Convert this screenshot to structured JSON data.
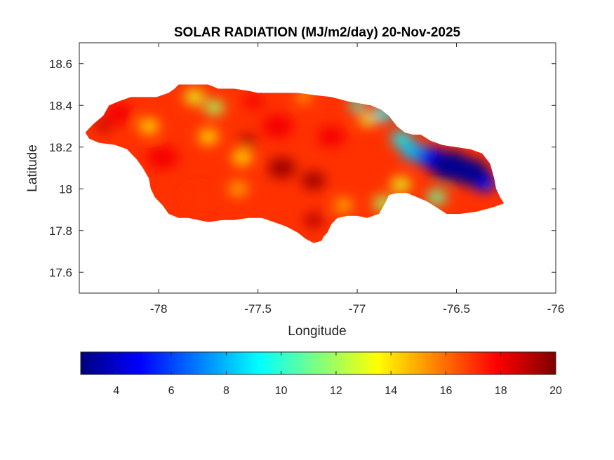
{
  "chart_data": {
    "type": "heatmap",
    "title": "SOLAR RADIATION (MJ/m2/day) 20-Nov-2025",
    "xlabel": "Longitude",
    "ylabel": "Latitude",
    "xlim": [
      -78.4,
      -76
    ],
    "ylim": [
      17.5,
      18.7
    ],
    "xticks": [
      -78,
      -77.5,
      -77,
      -76.5,
      -76
    ],
    "yticks": [
      17.6,
      17.8,
      18,
      18.2,
      18.4,
      18.6
    ],
    "grid": false,
    "colormap": "jet",
    "colorbar": {
      "orientation": "horizontal",
      "location": "bottom",
      "range": [
        2.7,
        20
      ],
      "ticks": [
        4,
        6,
        8,
        10,
        12,
        14,
        16,
        18,
        20
      ]
    },
    "colors": {
      "background": "#ffffff",
      "axis": "#262626",
      "jet": [
        "#00007f",
        "#0000ff",
        "#007fff",
        "#00ffff",
        "#7fff7f",
        "#ffff00",
        "#ff7f00",
        "#ff0000",
        "#7f0000"
      ]
    },
    "outline_lonlat": [
      [
        -78.37,
        18.27
      ],
      [
        -78.33,
        18.31
      ],
      [
        -78.28,
        18.35
      ],
      [
        -78.25,
        18.4
      ],
      [
        -78.2,
        18.42
      ],
      [
        -78.14,
        18.44
      ],
      [
        -78.08,
        18.44
      ],
      [
        -78.01,
        18.44
      ],
      [
        -77.95,
        18.46
      ],
      [
        -77.92,
        18.48
      ],
      [
        -77.9,
        18.5
      ],
      [
        -77.83,
        18.5
      ],
      [
        -77.75,
        18.5
      ],
      [
        -77.7,
        18.48
      ],
      [
        -77.62,
        18.48
      ],
      [
        -77.55,
        18.47
      ],
      [
        -77.5,
        18.46
      ],
      [
        -77.4,
        18.46
      ],
      [
        -77.3,
        18.46
      ],
      [
        -77.22,
        18.45
      ],
      [
        -77.13,
        18.44
      ],
      [
        -77.05,
        18.42
      ],
      [
        -76.99,
        18.41
      ],
      [
        -76.93,
        18.4
      ],
      [
        -76.88,
        18.38
      ],
      [
        -76.84,
        18.35
      ],
      [
        -76.8,
        18.3
      ],
      [
        -76.76,
        18.27
      ],
      [
        -76.72,
        18.26
      ],
      [
        -76.68,
        18.26
      ],
      [
        -76.63,
        18.23
      ],
      [
        -76.57,
        18.21
      ],
      [
        -76.5,
        18.2
      ],
      [
        -76.43,
        18.19
      ],
      [
        -76.37,
        18.17
      ],
      [
        -76.33,
        18.12
      ],
      [
        -76.31,
        18.05
      ],
      [
        -76.3,
        18.0
      ],
      [
        -76.28,
        17.96
      ],
      [
        -76.26,
        17.93
      ],
      [
        -76.32,
        17.91
      ],
      [
        -76.4,
        17.89
      ],
      [
        -76.48,
        17.88
      ],
      [
        -76.55,
        17.88
      ],
      [
        -76.6,
        17.91
      ],
      [
        -76.65,
        17.94
      ],
      [
        -76.7,
        17.96
      ],
      [
        -76.75,
        17.98
      ],
      [
        -76.8,
        17.98
      ],
      [
        -76.84,
        17.97
      ],
      [
        -76.86,
        17.93
      ],
      [
        -76.89,
        17.88
      ],
      [
        -76.95,
        17.86
      ],
      [
        -77.0,
        17.87
      ],
      [
        -77.05,
        17.87
      ],
      [
        -77.1,
        17.86
      ],
      [
        -77.13,
        17.83
      ],
      [
        -77.15,
        17.79
      ],
      [
        -77.17,
        17.77
      ],
      [
        -77.18,
        17.75
      ],
      [
        -77.22,
        17.74
      ],
      [
        -77.26,
        17.76
      ],
      [
        -77.3,
        17.79
      ],
      [
        -77.36,
        17.82
      ],
      [
        -77.42,
        17.84
      ],
      [
        -77.48,
        17.86
      ],
      [
        -77.55,
        17.86
      ],
      [
        -77.62,
        17.85
      ],
      [
        -77.68,
        17.85
      ],
      [
        -77.75,
        17.84
      ],
      [
        -77.8,
        17.85
      ],
      [
        -77.85,
        17.86
      ],
      [
        -77.9,
        17.86
      ],
      [
        -77.95,
        17.88
      ],
      [
        -77.98,
        17.92
      ],
      [
        -78.02,
        17.96
      ],
      [
        -78.04,
        18.0
      ],
      [
        -78.05,
        18.05
      ],
      [
        -78.08,
        18.1
      ],
      [
        -78.11,
        18.14
      ],
      [
        -78.16,
        18.19
      ],
      [
        -78.22,
        18.21
      ],
      [
        -78.3,
        18.22
      ],
      [
        -78.35,
        18.24
      ]
    ],
    "regions": [
      {
        "lon": -76.53,
        "lat": 18.11,
        "r": 0.1,
        "value": 3
      },
      {
        "lon": -76.43,
        "lat": 18.08,
        "r": 0.09,
        "value": 3
      },
      {
        "lon": -76.63,
        "lat": 18.15,
        "r": 0.07,
        "value": 5
      },
      {
        "lon": -76.36,
        "lat": 18.03,
        "r": 0.06,
        "value": 5
      },
      {
        "lon": -76.72,
        "lat": 18.18,
        "r": 0.06,
        "value": 8
      },
      {
        "lon": -76.87,
        "lat": 18.36,
        "r": 0.05,
        "value": 9
      },
      {
        "lon": -76.78,
        "lat": 18.24,
        "r": 0.05,
        "value": 9
      },
      {
        "lon": -77.0,
        "lat": 18.4,
        "r": 0.04,
        "value": 10
      },
      {
        "lon": -76.6,
        "lat": 17.96,
        "r": 0.05,
        "value": 11
      },
      {
        "lon": -76.87,
        "lat": 17.93,
        "r": 0.05,
        "value": 12
      },
      {
        "lon": -76.78,
        "lat": 18.02,
        "r": 0.05,
        "value": 13
      },
      {
        "lon": -76.95,
        "lat": 18.33,
        "r": 0.04,
        "value": 13
      },
      {
        "lon": -77.82,
        "lat": 18.44,
        "r": 0.05,
        "value": 13
      },
      {
        "lon": -77.72,
        "lat": 18.39,
        "r": 0.05,
        "value": 12
      },
      {
        "lon": -78.05,
        "lat": 18.3,
        "r": 0.05,
        "value": 14
      },
      {
        "lon": -77.75,
        "lat": 18.25,
        "r": 0.05,
        "value": 14
      },
      {
        "lon": -77.58,
        "lat": 18.15,
        "r": 0.05,
        "value": 14
      },
      {
        "lon": -77.6,
        "lat": 18.0,
        "r": 0.05,
        "value": 15
      },
      {
        "lon": -77.07,
        "lat": 17.92,
        "r": 0.05,
        "value": 15
      },
      {
        "lon": -77.27,
        "lat": 18.44,
        "r": 0.04,
        "value": 15
      },
      {
        "lon": -78.2,
        "lat": 18.36,
        "r": 0.07,
        "value": 18
      },
      {
        "lon": -77.98,
        "lat": 18.15,
        "r": 0.08,
        "value": 18
      },
      {
        "lon": -77.8,
        "lat": 17.96,
        "r": 0.07,
        "value": 17
      },
      {
        "lon": -77.4,
        "lat": 18.3,
        "r": 0.08,
        "value": 18
      },
      {
        "lon": -77.52,
        "lat": 18.42,
        "r": 0.05,
        "value": 18
      },
      {
        "lon": -77.13,
        "lat": 18.25,
        "r": 0.07,
        "value": 18
      },
      {
        "lon": -77.38,
        "lat": 18.1,
        "r": 0.07,
        "value": 19.5
      },
      {
        "lon": -77.22,
        "lat": 18.04,
        "r": 0.06,
        "value": 19.5
      },
      {
        "lon": -77.22,
        "lat": 17.85,
        "r": 0.05,
        "value": 19
      },
      {
        "lon": -78.28,
        "lat": 18.3,
        "r": 0.04,
        "value": 19
      },
      {
        "lon": -77.55,
        "lat": 18.23,
        "r": 0.04,
        "value": 19.5
      }
    ]
  }
}
